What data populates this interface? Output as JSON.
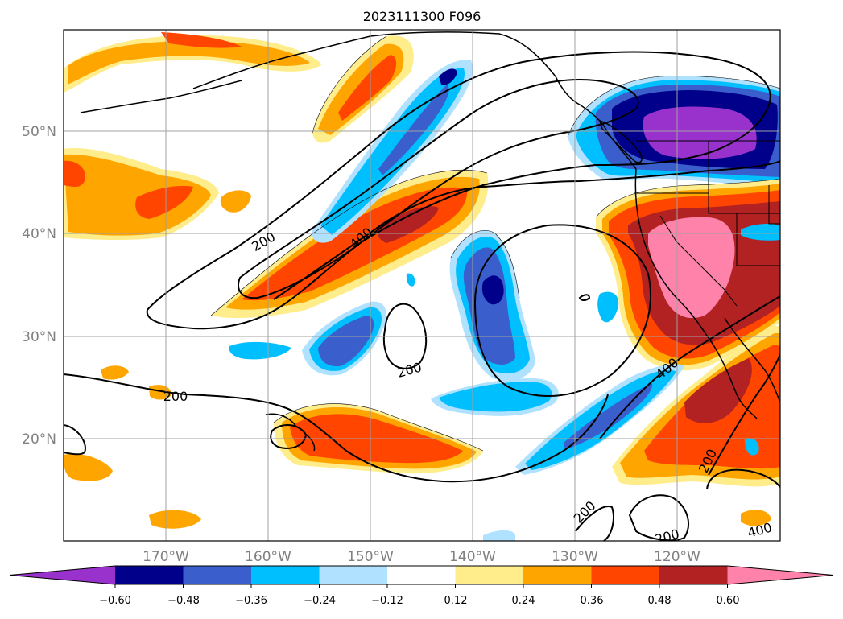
{
  "title": "2023111300 F096",
  "map": {
    "lon_min": -180,
    "lon_max": -110,
    "lat_min": 10,
    "lat_max": 60,
    "gridline_color": "#a0a0a0",
    "lat_labels": [
      "50°N",
      "40°N",
      "30°N",
      "20°N"
    ],
    "lon_labels": [
      "170°W",
      "160°W",
      "150°W",
      "140°W",
      "130°W",
      "120°W"
    ],
    "tick_label_color": "#808080",
    "contour_labels": [
      "200",
      "400",
      "200",
      "200",
      "400",
      "200",
      "200",
      "200",
      "400"
    ]
  },
  "colorbar": {
    "ticks": [
      "−0.60",
      "−0.48",
      "−0.36",
      "−0.24",
      "−0.12",
      "0.12",
      "0.24",
      "0.36",
      "0.48",
      "0.60"
    ],
    "colors": [
      "#9932cc",
      "#00008b",
      "#3a5fcd",
      "#00bfff",
      "#b0e2ff",
      "#ffffff",
      "#ffec8b",
      "#ffa500",
      "#ff4500",
      "#b22222",
      "#ff82ab"
    ],
    "extend": "both"
  }
}
